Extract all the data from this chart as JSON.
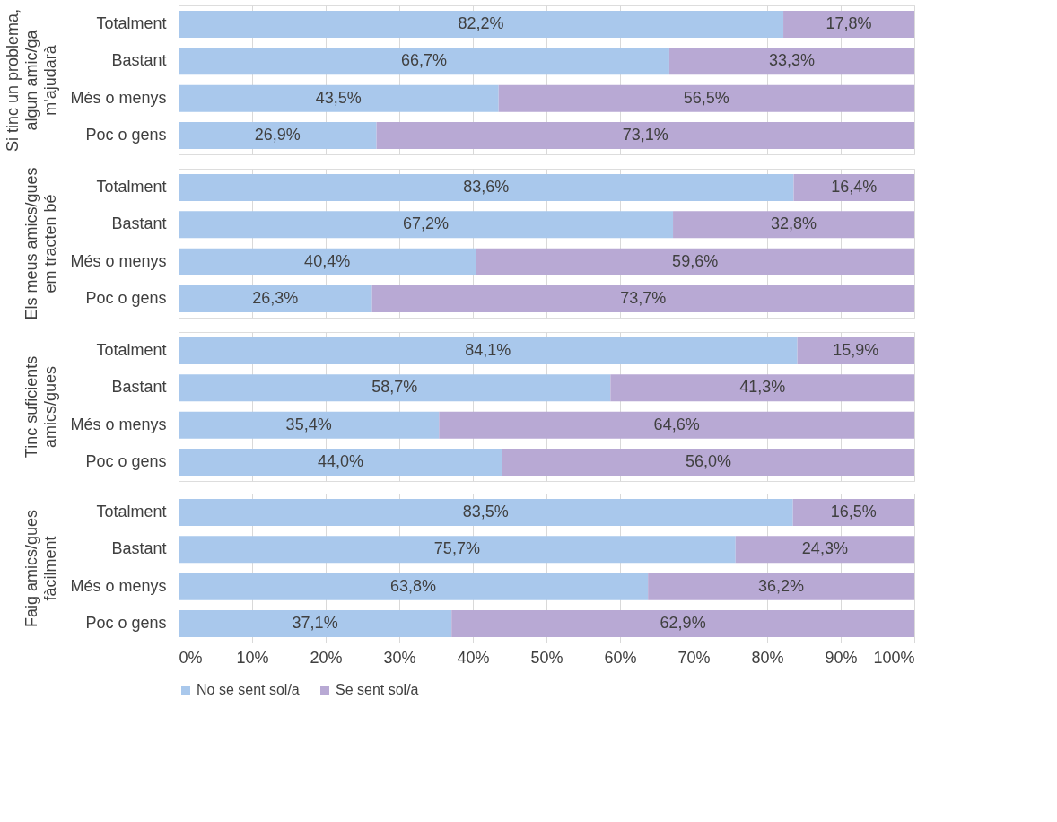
{
  "chart_data": [
    {
      "type": "bar",
      "orientation": "horizontal",
      "stacked": true,
      "ylabel": "Si tinc un problema, algun amic/ga m'ajudarà",
      "categories": [
        "Totalment",
        "Bastant",
        "Més o menys",
        "Poc o gens"
      ],
      "xlim": [
        0,
        100
      ],
      "xticks": [
        0,
        10,
        20,
        30,
        40,
        50,
        60,
        70,
        80,
        90,
        100
      ],
      "grid": "x",
      "tick_labels": "y",
      "legend": "bottom",
      "series": [
        {
          "name": "No se sent sol/a",
          "color": "#a9c8ec",
          "values": [
            82.2,
            66.7,
            43.5,
            26.9
          ],
          "value_labels": [
            "82,2%",
            "66,7%",
            "43,5%",
            "26,9%"
          ]
        },
        {
          "name": "Se sent sol/a",
          "color": "#b8a9d4",
          "values": [
            17.8,
            33.3,
            56.5,
            73.1
          ],
          "value_labels": [
            "17,8%",
            "33,3%",
            "56,5%",
            "73,1%"
          ]
        }
      ]
    },
    {
      "type": "bar",
      "orientation": "horizontal",
      "stacked": true,
      "ylabel": "Els meus amics/gues em tracten bé",
      "categories": [
        "Totalment",
        "Bastant",
        "Més o menys",
        "Poc o gens"
      ],
      "xlim": [
        0,
        100
      ],
      "xticks": [
        0,
        10,
        20,
        30,
        40,
        50,
        60,
        70,
        80,
        90,
        100
      ],
      "grid": "x",
      "tick_labels": "y",
      "legend": "bottom",
      "series": [
        {
          "name": "No se sent sol/a",
          "color": "#a9c8ec",
          "values": [
            83.6,
            67.2,
            40.4,
            26.3
          ],
          "value_labels": [
            "83,6%",
            "67,2%",
            "40,4%",
            "26,3%"
          ]
        },
        {
          "name": "Se sent sol/a",
          "color": "#b8a9d4",
          "values": [
            16.4,
            32.8,
            59.6,
            73.7
          ],
          "value_labels": [
            "16,4%",
            "32,8%",
            "59,6%",
            "73,7%"
          ]
        }
      ]
    },
    {
      "type": "bar",
      "orientation": "horizontal",
      "stacked": true,
      "ylabel": "Tinc suficients amics/gues",
      "categories": [
        "Totalment",
        "Bastant",
        "Més o menys",
        "Poc o gens"
      ],
      "xlim": [
        0,
        100
      ],
      "xticks": [
        0,
        10,
        20,
        30,
        40,
        50,
        60,
        70,
        80,
        90,
        100
      ],
      "grid": "x",
      "tick_labels": "y",
      "legend": "bottom",
      "series": [
        {
          "name": "No se sent sol/a",
          "color": "#a9c8ec",
          "values": [
            84.1,
            58.7,
            35.4,
            44.0
          ],
          "value_labels": [
            "84,1%",
            "58,7%",
            "35,4%",
            "44,0%"
          ]
        },
        {
          "name": "Se sent sol/a",
          "color": "#b8a9d4",
          "values": [
            15.9,
            41.3,
            64.6,
            56.0
          ],
          "value_labels": [
            "15,9%",
            "41,3%",
            "64,6%",
            "56,0%"
          ]
        }
      ]
    },
    {
      "type": "bar",
      "orientation": "horizontal",
      "stacked": true,
      "ylabel": "Faig amics/gues fàcilment",
      "categories": [
        "Totalment",
        "Bastant",
        "Més o menys",
        "Poc o gens"
      ],
      "xlim": [
        0,
        100
      ],
      "xticks": [
        {
          "value": 0,
          "label": "0%"
        },
        {
          "value": 10,
          "label": "10%"
        },
        {
          "value": 20,
          "label": "20%"
        },
        {
          "value": 30,
          "label": "30%"
        },
        {
          "value": 40,
          "label": "40%"
        },
        {
          "value": 50,
          "label": "50%"
        },
        {
          "value": 60,
          "label": "60%"
        },
        {
          "value": 70,
          "label": "70%"
        },
        {
          "value": 80,
          "label": "80%"
        },
        {
          "value": 90,
          "label": "90%"
        },
        {
          "value": 100,
          "label": "100%"
        }
      ],
      "grid": "x",
      "legend": "bottom",
      "series": [
        {
          "name": "No se sent sol/a",
          "color": "#a9c8ec",
          "values": [
            83.5,
            75.7,
            63.8,
            37.1
          ],
          "value_labels": [
            "83,5%",
            "75,7%",
            "63,8%",
            "37,1%"
          ]
        },
        {
          "name": "Se sent sol/a",
          "color": "#b8a9d4",
          "values": [
            16.5,
            24.3,
            36.2,
            62.9
          ],
          "value_labels": [
            "16,5%",
            "24,3%",
            "36,2%",
            "62,9%"
          ]
        }
      ]
    }
  ]
}
